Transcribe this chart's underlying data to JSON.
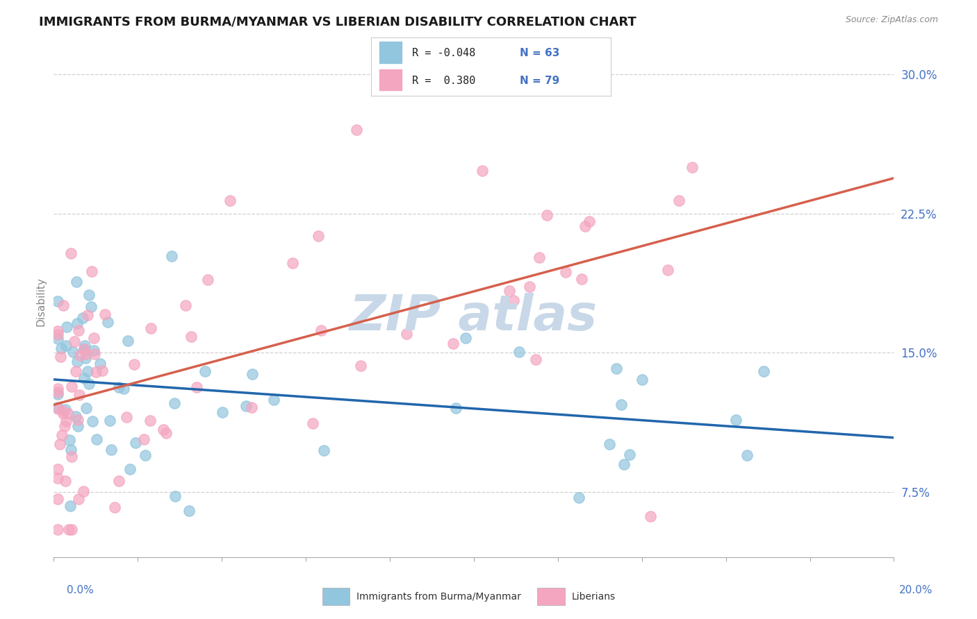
{
  "title": "IMMIGRANTS FROM BURMA/MYANMAR VS LIBERIAN DISABILITY CORRELATION CHART",
  "source": "Source: ZipAtlas.com",
  "ylabel": "Disability",
  "y_tick_vals": [
    0.075,
    0.15,
    0.225,
    0.3
  ],
  "y_tick_labels": [
    "7.5%",
    "15.0%",
    "22.5%",
    "30.0%"
  ],
  "x_range": [
    0.0,
    0.2
  ],
  "y_range": [
    0.04,
    0.315
  ],
  "color_blue": "#92c5de",
  "color_pink": "#f4a6c0",
  "color_blue_line": "#2166ac",
  "color_pink_line": "#d6604d",
  "color_blue_text": "#4472c4",
  "background_color": "#ffffff",
  "grid_color": "#d0d0d0",
  "watermark_color": "#c8d8e8",
  "legend_R1": "R = -0.048",
  "legend_N1": "N = 63",
  "legend_R2": "R =  0.380",
  "legend_N2": "N = 79"
}
